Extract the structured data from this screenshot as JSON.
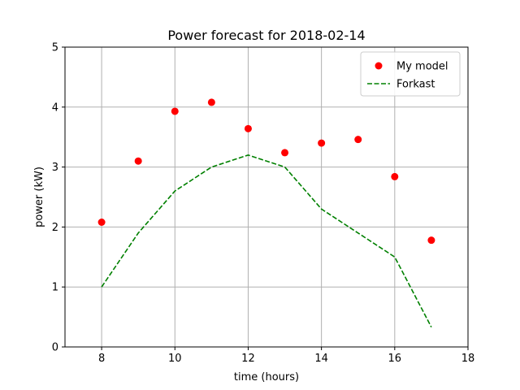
{
  "chart_data": {
    "type": "line",
    "title": "Power forecast for 2018-02-14",
    "xlabel": "time (hours)",
    "ylabel": "power (kW)",
    "xlim": [
      7,
      18
    ],
    "ylim": [
      0,
      5
    ],
    "xticks": [
      8,
      10,
      12,
      14,
      16,
      18
    ],
    "yticks": [
      0,
      1,
      2,
      3,
      4,
      5
    ],
    "grid": true,
    "legend_position": "top-right",
    "series": [
      {
        "name": "My model",
        "style": "markers",
        "color": "#ff0000",
        "x": [
          8,
          9,
          10,
          11,
          12,
          13,
          14,
          15,
          16,
          17
        ],
        "y": [
          2.08,
          3.1,
          3.93,
          4.08,
          3.64,
          3.24,
          3.4,
          3.46,
          2.84,
          1.78
        ]
      },
      {
        "name": "Forkast",
        "style": "dashed-line",
        "color": "#008000",
        "x": [
          8,
          9,
          10,
          11,
          12,
          13,
          14,
          15,
          16,
          17
        ],
        "y": [
          1.0,
          1.9,
          2.6,
          3.0,
          3.2,
          3.0,
          2.3,
          1.9,
          1.5,
          0.33
        ]
      }
    ]
  }
}
